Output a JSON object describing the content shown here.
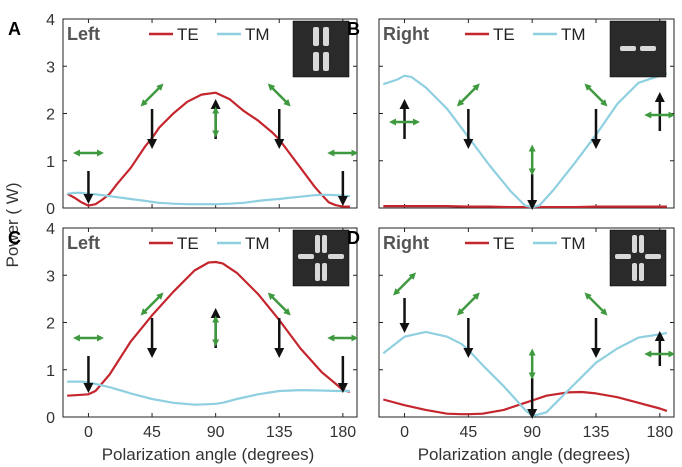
{
  "figure": {
    "xlabel": "Polarization angle (degrees)",
    "ylabel": "Power (   W)"
  },
  "colors": {
    "te": "#c4262e",
    "tm": "#8ecfe0",
    "pol_arrow": "#3f9a3f",
    "axis": "#222222"
  },
  "chart_data": [
    {
      "panel_letter": "A",
      "side_label": "Left",
      "type": "line",
      "x": [
        -15,
        -10,
        -5,
        0,
        5,
        10,
        15,
        20,
        30,
        40,
        45,
        50,
        60,
        70,
        80,
        90,
        100,
        110,
        120,
        130,
        135,
        140,
        150,
        160,
        165,
        170,
        175,
        180,
        185
      ],
      "series": [
        {
          "name": "TE",
          "values": [
            0.3,
            0.22,
            0.12,
            0.05,
            0.08,
            0.18,
            0.3,
            0.5,
            0.85,
            1.3,
            1.48,
            1.7,
            2.0,
            2.25,
            2.4,
            2.44,
            2.3,
            2.05,
            1.85,
            1.6,
            1.45,
            1.25,
            0.85,
            0.45,
            0.28,
            0.12,
            0.06,
            0.03,
            0.03
          ]
        },
        {
          "name": "TM",
          "values": [
            0.3,
            0.32,
            0.32,
            0.3,
            0.29,
            0.27,
            0.25,
            0.23,
            0.19,
            0.15,
            0.13,
            0.11,
            0.09,
            0.08,
            0.08,
            0.08,
            0.09,
            0.11,
            0.15,
            0.18,
            0.19,
            0.21,
            0.24,
            0.27,
            0.28,
            0.28,
            0.27,
            0.26,
            0.25
          ]
        }
      ],
      "xlim": [
        -18,
        190
      ],
      "ylim": [
        0,
        4
      ],
      "xticks": [
        "0",
        "45",
        "90",
        "135",
        "180"
      ],
      "yticks": [
        "0",
        "1",
        "2",
        "3",
        "4"
      ],
      "legend": [
        "TE",
        "TM"
      ],
      "legend_position": "top",
      "inset": "two vertical bars",
      "show_xticklabels": false,
      "show_yticklabels": true
    },
    {
      "panel_letter": "B",
      "side_label": "Right",
      "type": "line",
      "x": [
        -15,
        -5,
        0,
        5,
        15,
        30,
        45,
        60,
        75,
        85,
        90,
        95,
        105,
        120,
        135,
        150,
        165,
        180,
        185
      ],
      "series": [
        {
          "name": "TE",
          "values": [
            0.04,
            0.04,
            0.04,
            0.04,
            0.04,
            0.04,
            0.03,
            0.03,
            0.02,
            0.02,
            0.02,
            0.02,
            0.02,
            0.02,
            0.03,
            0.03,
            0.03,
            0.03,
            0.03
          ]
        },
        {
          "name": "TM",
          "values": [
            2.62,
            2.72,
            2.8,
            2.77,
            2.55,
            2.1,
            1.5,
            0.9,
            0.35,
            0.05,
            0.02,
            0.05,
            0.38,
            0.95,
            1.55,
            2.2,
            2.65,
            2.8,
            2.85
          ]
        }
      ],
      "xlim": [
        -18,
        190
      ],
      "ylim": [
        0,
        4
      ],
      "xticks": [
        "0",
        "45",
        "90",
        "135",
        "180"
      ],
      "yticks": [
        "0",
        "1",
        "2",
        "3",
        "4"
      ],
      "legend": [
        "TE",
        "TM"
      ],
      "legend_position": "top",
      "inset": "two horizontal bars",
      "show_xticklabels": false,
      "show_yticklabels": false
    },
    {
      "panel_letter": "C",
      "side_label": "Left",
      "type": "line",
      "x": [
        -15,
        -5,
        0,
        5,
        15,
        30,
        45,
        60,
        75,
        85,
        90,
        95,
        105,
        120,
        135,
        150,
        165,
        175,
        180,
        185
      ],
      "series": [
        {
          "name": "TE",
          "values": [
            0.45,
            0.47,
            0.48,
            0.55,
            0.9,
            1.6,
            2.15,
            2.65,
            3.1,
            3.27,
            3.28,
            3.25,
            3.05,
            2.6,
            2.05,
            1.45,
            0.95,
            0.7,
            0.57,
            0.53
          ]
        },
        {
          "name": "TM",
          "values": [
            0.75,
            0.75,
            0.73,
            0.7,
            0.63,
            0.5,
            0.38,
            0.3,
            0.26,
            0.27,
            0.28,
            0.3,
            0.38,
            0.48,
            0.55,
            0.57,
            0.56,
            0.55,
            0.55,
            0.55
          ]
        }
      ],
      "xlim": [
        -18,
        190
      ],
      "ylim": [
        0,
        4
      ],
      "xticks": [
        "0",
        "45",
        "90",
        "135",
        "180"
      ],
      "yticks": [
        "0",
        "1",
        "2",
        "3",
        "4"
      ],
      "legend": [
        "TE",
        "TM"
      ],
      "legend_position": "top",
      "inset": "cross pattern",
      "show_xticklabels": true,
      "show_yticklabels": true
    },
    {
      "panel_letter": "D",
      "side_label": "Right",
      "type": "line",
      "x": [
        -15,
        0,
        15,
        30,
        40,
        45,
        55,
        70,
        85,
        90,
        100,
        115,
        125,
        135,
        150,
        165,
        180,
        185
      ],
      "series": [
        {
          "name": "TE",
          "values": [
            0.37,
            0.25,
            0.15,
            0.07,
            0.06,
            0.06,
            0.07,
            0.15,
            0.3,
            0.35,
            0.45,
            0.52,
            0.53,
            0.5,
            0.42,
            0.3,
            0.18,
            0.13
          ]
        },
        {
          "name": "TM",
          "values": [
            1.35,
            1.7,
            1.8,
            1.7,
            1.55,
            1.42,
            1.1,
            0.65,
            0.15,
            0.02,
            0.1,
            0.55,
            0.85,
            1.15,
            1.45,
            1.68,
            1.75,
            1.78
          ]
        }
      ],
      "xlim": [
        -18,
        190
      ],
      "ylim": [
        0,
        4
      ],
      "xticks": [
        "0",
        "45",
        "90",
        "135",
        "180"
      ],
      "yticks": [
        "0",
        "1",
        "2",
        "3",
        "4"
      ],
      "legend": [
        "TE",
        "TM"
      ],
      "legend_position": "top",
      "inset": "cross pattern",
      "show_xticklabels": true,
      "show_yticklabels": false
    }
  ]
}
